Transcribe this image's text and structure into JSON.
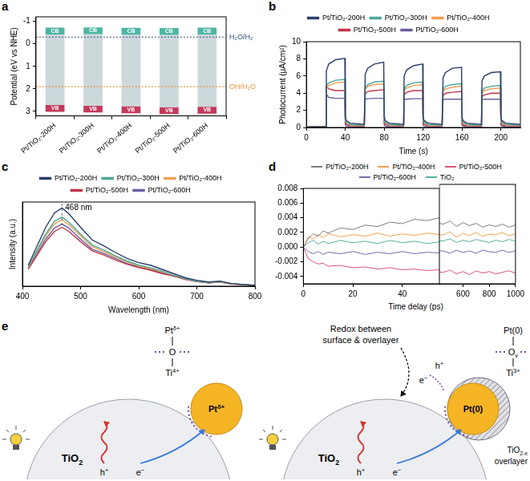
{
  "chart_data": [
    {
      "panel": "a",
      "type": "bar",
      "y_label": "Potential (eV vs NHE)",
      "categories": [
        "Pt/TiO₂-200H",
        "Pt/TiO₂-300H",
        "Pt/TiO₂-400H",
        "Pt/TiO₂-500H",
        "Pt/TiO₂-600H"
      ],
      "series": [
        {
          "name": "CB",
          "color": "#4db6a4",
          "values": [
            [
              -0.72,
              -0.42
            ],
            [
              -0.73,
              -0.43
            ],
            [
              -0.71,
              -0.41
            ],
            [
              -0.7,
              -0.4
            ],
            [
              -0.72,
              -0.42
            ]
          ]
        },
        {
          "name": "VB",
          "color": "#c43a5c",
          "values": [
            [
              2.72,
              3.02
            ],
            [
              2.75,
              3.05
            ],
            [
              2.78,
              3.08
            ],
            [
              2.82,
              3.12
            ],
            [
              2.8,
              3.1
            ]
          ]
        }
      ],
      "reference_lines": [
        {
          "label": "H₂O/H₂",
          "value": -0.3,
          "color": "#2f4f80"
        },
        {
          "label": "OH/H₂O",
          "value": 1.9,
          "color": "#e8953a"
        }
      ],
      "ylim": [
        3.2,
        -1.2
      ],
      "yticks": [
        -1,
        0,
        1,
        2,
        3
      ],
      "grid": false
    },
    {
      "panel": "b",
      "type": "line",
      "x_label": "Time (s)",
      "y_label": "Photocurrent (μA/cm²)",
      "x": [
        0,
        20,
        20.5,
        23,
        30,
        39.5,
        40,
        41,
        45,
        59.5,
        60,
        60.5,
        63,
        70,
        79.5,
        80,
        81,
        85,
        99.5,
        100,
        100.5,
        103,
        110,
        119.5,
        120,
        121,
        125,
        139.5,
        140,
        140.5,
        143,
        150,
        159.5,
        160,
        161,
        165,
        179.5,
        180,
        180.5,
        183,
        190,
        199.5,
        200,
        201,
        205,
        219.5
      ],
      "series": [
        {
          "name": "Pt/TiO₂-200H",
          "color": "#2b3f6b",
          "values": [
            0.05,
            0.1,
            6.6,
            7.4,
            7.9,
            8.05,
            1.3,
            0.8,
            0.5,
            0.35,
            0.35,
            6.2,
            6.9,
            7.4,
            7.6,
            1.3,
            0.8,
            0.5,
            0.35,
            0.35,
            6.0,
            6.7,
            7.2,
            7.4,
            1.2,
            0.8,
            0.5,
            0.35,
            0.35,
            5.8,
            6.4,
            6.9,
            7.0,
            1.2,
            0.8,
            0.5,
            0.35,
            0.35,
            5.4,
            6.0,
            6.4,
            6.5,
            1.2,
            0.8,
            0.5,
            0.35
          ]
        },
        {
          "name": "Pt/TiO₂-300H",
          "color": "#4aa99a",
          "values": [
            0.05,
            0.1,
            4.8,
            5.2,
            5.5,
            5.6,
            1.0,
            0.6,
            0.35,
            0.25,
            0.25,
            4.6,
            5.0,
            5.3,
            5.4,
            1.0,
            0.6,
            0.35,
            0.25,
            0.25,
            4.5,
            4.9,
            5.2,
            5.3,
            1.0,
            0.6,
            0.35,
            0.25,
            0.25,
            4.4,
            4.8,
            5.0,
            5.1,
            0.9,
            0.6,
            0.35,
            0.25,
            0.25,
            4.2,
            4.6,
            4.8,
            4.9,
            0.9,
            0.6,
            0.35,
            0.25
          ]
        },
        {
          "name": "Pt/TiO₂-400H",
          "color": "#f0a050",
          "values": [
            0.05,
            0.1,
            4.5,
            4.9,
            5.2,
            5.3,
            0.9,
            0.55,
            0.3,
            0.2,
            0.2,
            4.4,
            4.8,
            5.0,
            5.1,
            0.9,
            0.55,
            0.3,
            0.2,
            0.2,
            4.3,
            4.6,
            4.9,
            5.0,
            0.9,
            0.55,
            0.3,
            0.2,
            0.2,
            4.2,
            4.5,
            4.7,
            4.8,
            0.85,
            0.5,
            0.3,
            0.2,
            0.2,
            4.0,
            4.3,
            4.5,
            4.6,
            0.85,
            0.5,
            0.3,
            0.2
          ]
        },
        {
          "name": "Pt/TiO₂-500H",
          "color": "#c0354a",
          "values": [
            0.05,
            0.1,
            4.8,
            4.5,
            4.3,
            4.3,
            0.6,
            0.35,
            0.2,
            0.15,
            0.15,
            3.9,
            4.2,
            4.3,
            4.4,
            0.6,
            0.35,
            0.2,
            0.15,
            0.15,
            3.8,
            4.1,
            4.3,
            4.3,
            0.6,
            0.35,
            0.2,
            0.15,
            0.15,
            3.7,
            4.0,
            4.1,
            4.2,
            0.55,
            0.3,
            0.2,
            0.15,
            0.15,
            3.6,
            3.8,
            4.0,
            4.0,
            0.55,
            0.3,
            0.2,
            0.15
          ]
        },
        {
          "name": "Pt/TiO₂-600H",
          "color": "#6e5d9e",
          "values": [
            0.05,
            0.1,
            3.9,
            3.5,
            3.4,
            3.4,
            0.3,
            0.15,
            0.1,
            0.05,
            0.05,
            3.3,
            3.35,
            3.4,
            3.4,
            0.3,
            0.15,
            0.1,
            0.05,
            0.05,
            3.3,
            3.3,
            3.35,
            3.35,
            0.3,
            0.15,
            0.1,
            0.05,
            0.05,
            3.25,
            3.3,
            3.3,
            3.3,
            0.3,
            0.15,
            0.1,
            0.05,
            0.05,
            3.25,
            3.3,
            3.3,
            3.3,
            0.3,
            0.15,
            0.1,
            0.05
          ]
        }
      ],
      "xlim": [
        0,
        220
      ],
      "xticks": [
        0,
        40,
        80,
        120,
        160,
        200
      ],
      "ylim": [
        0,
        10
      ],
      "yticks": [
        0,
        2,
        4,
        6,
        8,
        10
      ],
      "legend": "top",
      "grid": false
    },
    {
      "panel": "c",
      "type": "line",
      "x_label": "Wavelength (nm)",
      "y_label": "Intensity (a.u.)",
      "x": [
        410,
        420,
        440,
        455,
        468,
        480,
        500,
        520,
        540,
        560,
        580,
        600,
        620,
        640,
        660,
        680,
        700,
        720,
        740,
        760,
        780,
        800
      ],
      "series": [
        {
          "name": "Pt/TiO₂-200H",
          "color": "#2b3f6b",
          "values": [
            0.25,
            0.4,
            0.7,
            0.87,
            0.93,
            0.86,
            0.7,
            0.55,
            0.48,
            0.4,
            0.33,
            0.28,
            0.25,
            0.2,
            0.15,
            0.1,
            0.07,
            0.05,
            0.06,
            0.03,
            0.02,
            0.01
          ]
        },
        {
          "name": "Pt/TiO₂-300H",
          "color": "#4aa99a",
          "values": [
            0.23,
            0.36,
            0.62,
            0.77,
            0.82,
            0.76,
            0.62,
            0.49,
            0.43,
            0.36,
            0.3,
            0.25,
            0.22,
            0.18,
            0.13,
            0.09,
            0.06,
            0.045,
            0.055,
            0.03,
            0.02,
            0.01
          ]
        },
        {
          "name": "Pt/TiO₂-400H",
          "color": "#f0a050",
          "values": [
            0.22,
            0.35,
            0.6,
            0.74,
            0.79,
            0.73,
            0.6,
            0.47,
            0.41,
            0.35,
            0.29,
            0.24,
            0.21,
            0.17,
            0.13,
            0.09,
            0.06,
            0.045,
            0.05,
            0.03,
            0.02,
            0.01
          ]
        },
        {
          "name": "Pt/TiO₂-500H",
          "color": "#c0354a",
          "values": [
            0.2,
            0.31,
            0.53,
            0.65,
            0.7,
            0.65,
            0.53,
            0.42,
            0.37,
            0.31,
            0.26,
            0.22,
            0.19,
            0.15,
            0.12,
            0.08,
            0.055,
            0.04,
            0.05,
            0.025,
            0.015,
            0.01
          ]
        },
        {
          "name": "Pt/TiO₂-600H",
          "color": "#6e5d9e",
          "values": [
            0.21,
            0.33,
            0.56,
            0.69,
            0.74,
            0.69,
            0.56,
            0.44,
            0.39,
            0.33,
            0.27,
            0.23,
            0.2,
            0.16,
            0.12,
            0.085,
            0.06,
            0.04,
            0.05,
            0.03,
            0.02,
            0.01
          ]
        }
      ],
      "annotations": [
        {
          "text": "468 nm",
          "x": 468
        }
      ],
      "xlim": [
        400,
        800
      ],
      "xticks": [
        400,
        500,
        600,
        700,
        800
      ],
      "ylim": [
        0,
        1
      ],
      "tick_labels": "x",
      "legend": "top",
      "grid": false
    },
    {
      "panel": "d",
      "type": "line",
      "x_label": "Time delay (ps)",
      "x": [
        0,
        2,
        4,
        6,
        8,
        10,
        15,
        20,
        25,
        30,
        35,
        40,
        45,
        50,
        55,
        450,
        500,
        550,
        600,
        650,
        700,
        750,
        800,
        850,
        900,
        950,
        1000
      ],
      "series": [
        {
          "name": "Pt/TiO₂-200H",
          "color": "#7d7d7d",
          "values": [
            0.0,
            0.0012,
            0.0018,
            0.0015,
            0.0022,
            0.0019,
            0.0026,
            0.0024,
            0.003,
            0.0028,
            0.0034,
            0.0032,
            0.0038,
            0.0036,
            0.004,
            0.0028,
            0.0032,
            0.0025,
            0.003,
            0.0026,
            0.0029,
            0.0024,
            0.0027,
            0.0025,
            0.0028,
            0.0024,
            0.0027
          ]
        },
        {
          "name": "Pt/TiO₂-400H",
          "color": "#f0a050",
          "values": [
            0.0,
            0.0014,
            0.0011,
            0.0017,
            0.0013,
            0.0018,
            0.0014,
            0.0017,
            0.0015,
            0.0019,
            0.0015,
            0.0018,
            0.0016,
            0.0019,
            0.0017,
            0.0014,
            0.0018,
            0.0011,
            0.0016,
            0.0013,
            0.0017,
            0.0012,
            0.0015,
            0.0014,
            0.0017,
            0.0013,
            0.0015
          ]
        },
        {
          "name": "Pt/TiO₂-500H",
          "color": "#d65575",
          "values": [
            0.0,
            -0.0016,
            -0.002,
            -0.0023,
            -0.0022,
            -0.0026,
            -0.0025,
            -0.0028,
            -0.0027,
            -0.003,
            -0.0028,
            -0.0031,
            -0.003,
            -0.0032,
            -0.0031,
            -0.0035,
            -0.0032,
            -0.0037,
            -0.0034,
            -0.0038,
            -0.0033,
            -0.0036,
            -0.0034,
            -0.0037,
            -0.0035,
            -0.0033,
            -0.0036
          ]
        },
        {
          "name": "Pt/TiO₂-600H",
          "color": "#7a6aa8",
          "values": [
            0.0,
            -0.0006,
            -0.0009,
            -0.0006,
            -0.001,
            -0.0007,
            -0.0009,
            -0.0006,
            -0.001,
            -0.0007,
            -0.0009,
            -0.0006,
            -0.0009,
            -0.0007,
            -0.0008,
            -0.0007,
            -0.001,
            -0.0006,
            -0.0009,
            -0.0007,
            -0.001,
            -0.0006,
            -0.0008,
            -0.0009,
            -0.0006,
            -0.0009,
            -0.0007
          ]
        },
        {
          "name": "TiO₂",
          "color": "#55b0a0",
          "values": [
            0.0,
            0.0006,
            0.0009,
            0.0004,
            0.0008,
            0.0005,
            0.0009,
            0.0006,
            0.0008,
            0.0005,
            0.0009,
            0.0006,
            0.0008,
            0.0005,
            0.0007,
            0.0006,
            0.0009,
            0.0004,
            0.0007,
            0.0005,
            0.0008,
            0.0006,
            0.0004,
            0.0007,
            0.0005,
            0.0008,
            0.0006
          ]
        }
      ],
      "xlim": [
        [
          0,
          55
        ],
        [
          420,
          1000
        ]
      ],
      "xticks": [
        [
          0,
          20,
          40
        ],
        [
          600,
          800,
          1000
        ]
      ],
      "ylim": [
        -0.005,
        0.008
      ],
      "yticks": [
        0.008,
        0.006,
        0.004,
        0.002,
        {
          "value": 0,
          "label": "0.000"
        },
        -0.002,
        -0.004
      ],
      "legend": "top",
      "grid": false
    }
  ],
  "diagram": {
    "panel": "e",
    "left": {
      "structure": [
        {
          "text": "Pt",
          "sup": "δ+"
        },
        {
          "text": "O"
        },
        {
          "text": "Ti",
          "sup": "4+"
        }
      ],
      "particle": {
        "text": "Pt",
        "sup": "δ+"
      },
      "support": {
        "text": "TiO",
        "sub": "2"
      },
      "hole": {
        "text": "h",
        "sup": "+"
      },
      "electron": {
        "text": "e",
        "sup": "−"
      }
    },
    "right": {
      "caption": [
        "Redox between",
        "surface & overlayer"
      ],
      "structure": [
        {
          "text": "Pt(0)"
        },
        {
          "text": "O",
          "sub": "v"
        },
        {
          "text": "Ti",
          "sup": "3+"
        }
      ],
      "particle": {
        "text": "Pt(0)"
      },
      "support": {
        "text": "TiO",
        "sub": "2"
      },
      "overlayer": [
        {
          "text": "TiO",
          "sub": "2-x"
        },
        {
          "text": "overlayer"
        }
      ],
      "hole": {
        "text": "h",
        "sup": "+"
      },
      "electron": {
        "text": "e",
        "sup": "−"
      },
      "transfer": [
        {
          "text": "e",
          "sup": "−"
        },
        {
          "text": "h",
          "sup": "+"
        }
      ]
    }
  }
}
